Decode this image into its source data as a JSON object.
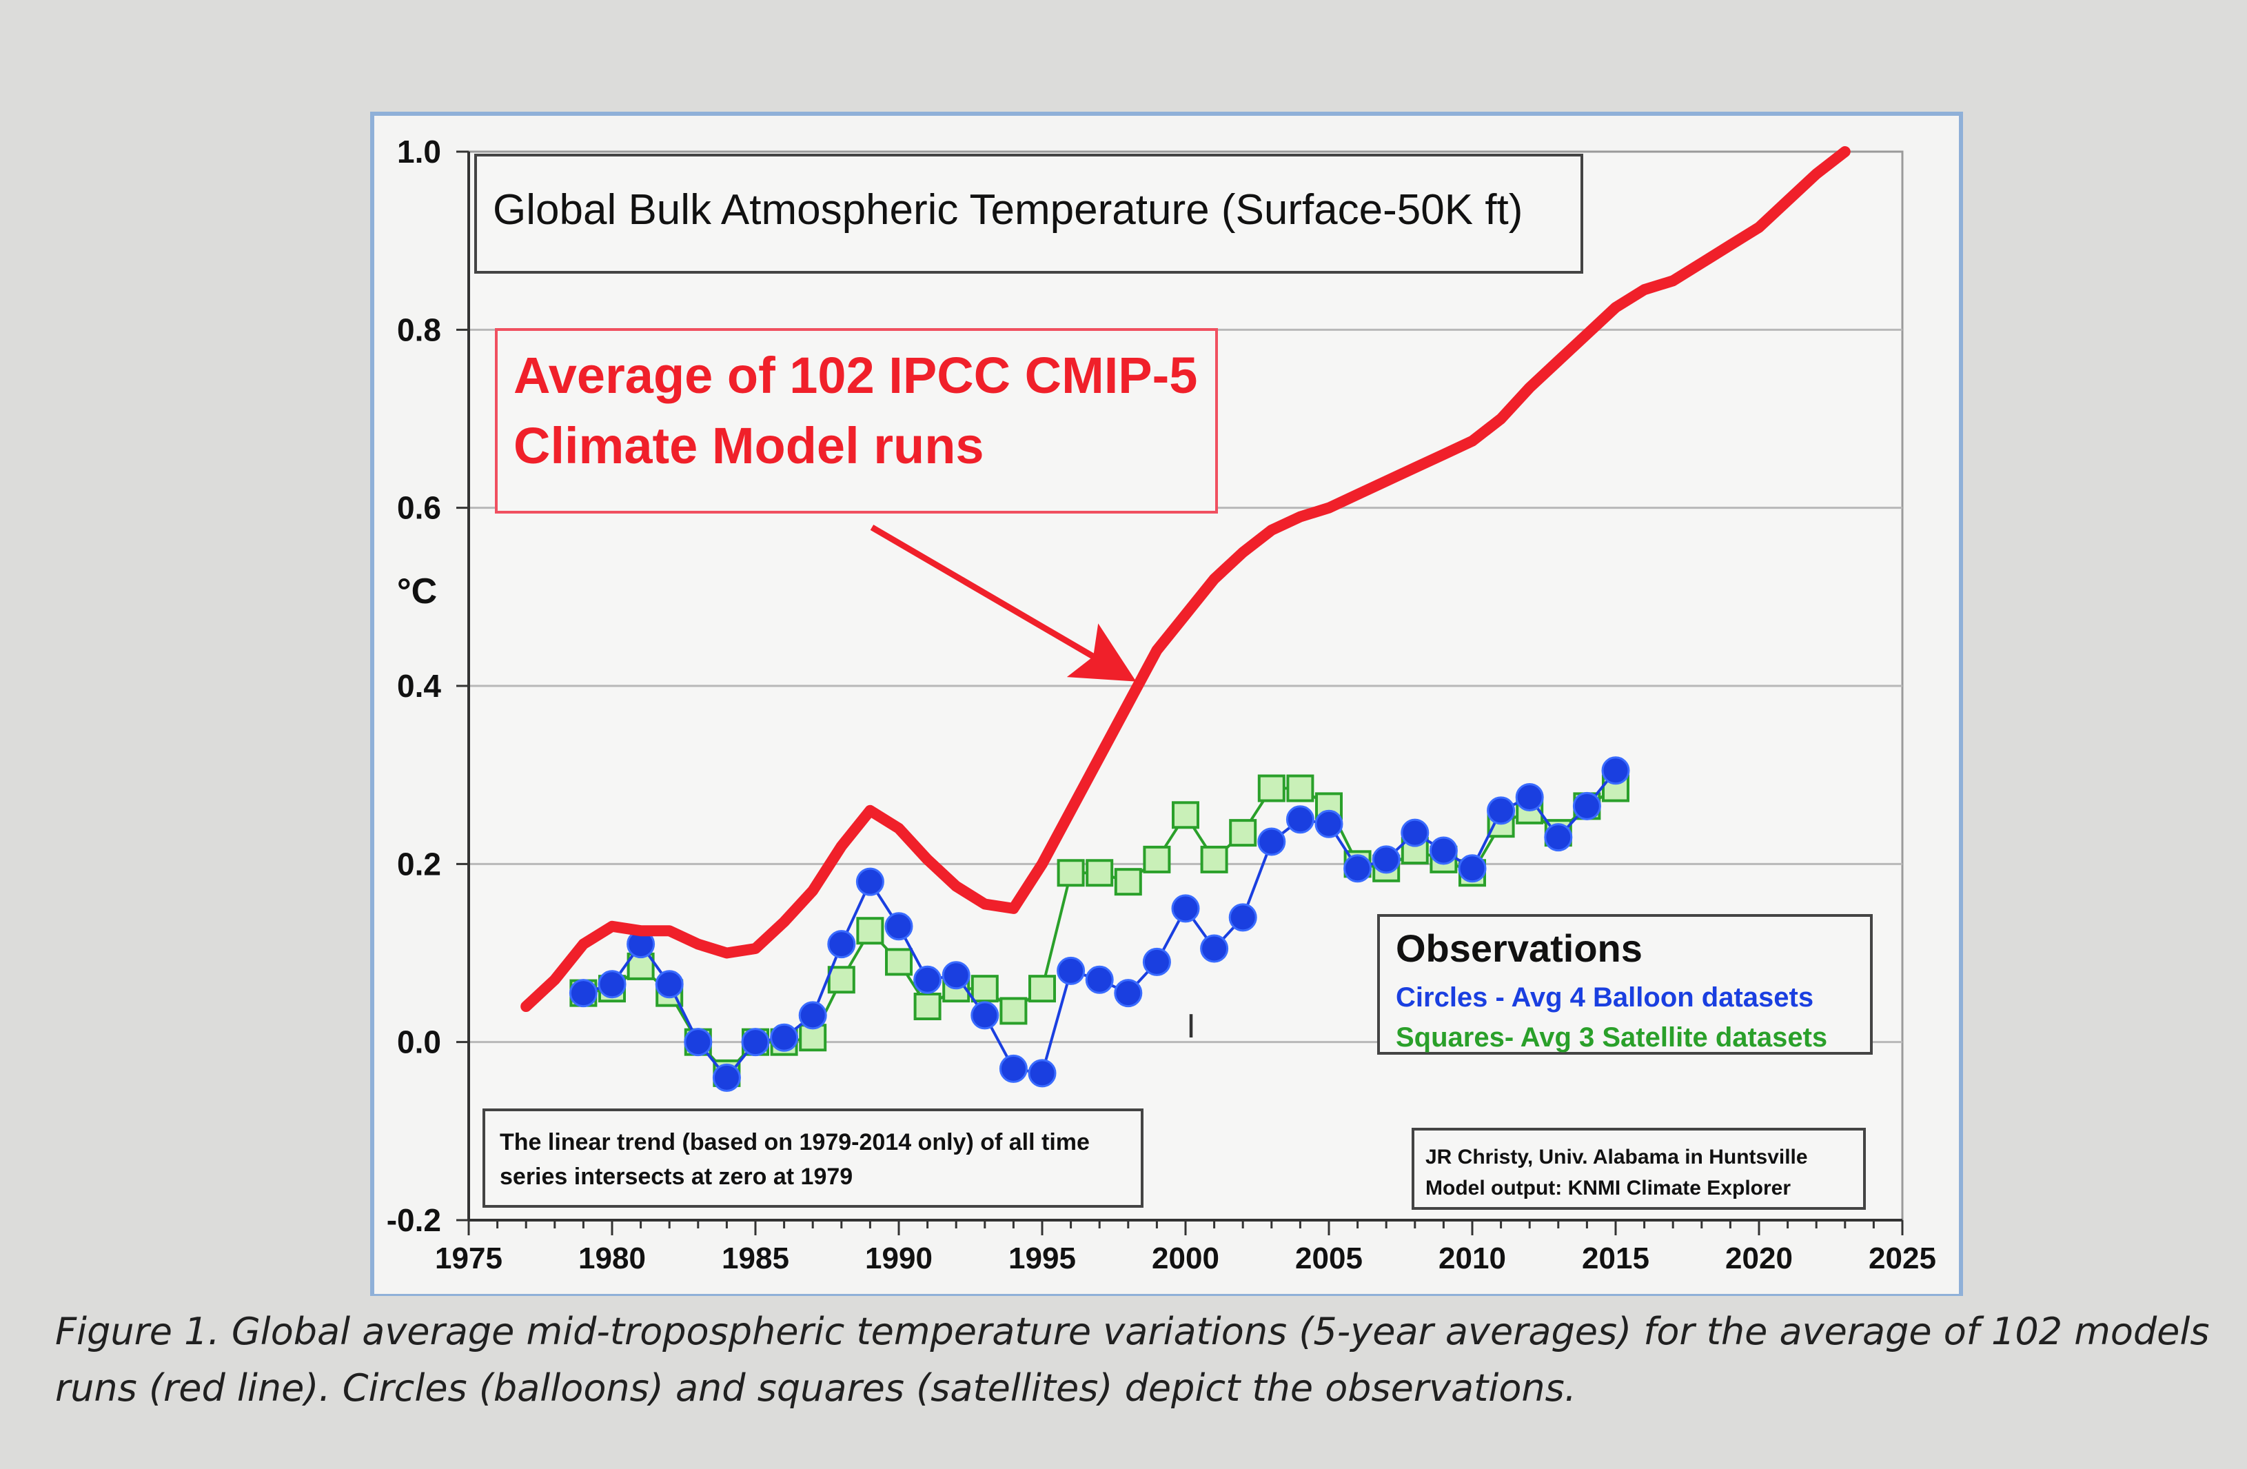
{
  "chart_data": {
    "type": "line",
    "title": "Global Bulk Atmospheric Temperature (Surface-50K ft)",
    "ylabel": "°C",
    "xlabel": "",
    "xlim": [
      1975,
      2025
    ],
    "ylim": [
      -0.2,
      1.0
    ],
    "x_ticks": [
      "1975",
      "1980",
      "1985",
      "1990",
      "1995",
      "2000",
      "2005",
      "2010",
      "2015",
      "2020",
      "2025"
    ],
    "y_ticks": [
      "-0.2",
      "0.0",
      "0.2",
      "0.4",
      "0.6",
      "0.8",
      "1.0"
    ],
    "grid": true,
    "series": [
      {
        "name": "Average of 102 IPCC CMIP-5 Climate Model runs",
        "color": "#f0202a",
        "marker": "none",
        "x": [
          1977,
          1978,
          1979,
          1980,
          1981,
          1982,
          1983,
          1984,
          1985,
          1986,
          1987,
          1988,
          1989,
          1990,
          1991,
          1992,
          1993,
          1994,
          1995,
          1996,
          1997,
          1998,
          1999,
          2000,
          2001,
          2002,
          2003,
          2004,
          2005,
          2006,
          2007,
          2008,
          2009,
          2010,
          2011,
          2012,
          2013,
          2014,
          2015,
          2016,
          2017,
          2018,
          2019,
          2020,
          2021,
          2022,
          2023
        ],
        "y": [
          0.04,
          0.07,
          0.11,
          0.13,
          0.125,
          0.125,
          0.11,
          0.1,
          0.105,
          0.135,
          0.17,
          0.22,
          0.26,
          0.24,
          0.205,
          0.175,
          0.155,
          0.15,
          0.2,
          0.26,
          0.32,
          0.38,
          0.44,
          0.48,
          0.52,
          0.55,
          0.575,
          0.59,
          0.6,
          0.615,
          0.63,
          0.645,
          0.66,
          0.675,
          0.7,
          0.735,
          0.765,
          0.795,
          0.825,
          0.845,
          0.855,
          0.875,
          0.895,
          0.915,
          0.945,
          0.975,
          1.0
        ]
      },
      {
        "name": "Circles - Avg 4 Balloon datasets",
        "color": "#1a3fe0",
        "marker": "circle",
        "x": [
          1979,
          1980,
          1981,
          1982,
          1983,
          1984,
          1985,
          1986,
          1987,
          1988,
          1989,
          1990,
          1991,
          1992,
          1993,
          1994,
          1995,
          1996,
          1997,
          1998,
          1999,
          2000,
          2001,
          2002,
          2003,
          2004,
          2005,
          2006,
          2007,
          2008,
          2009,
          2010,
          2011,
          2012,
          2013,
          2014,
          2015
        ],
        "y": [
          0.055,
          0.065,
          0.11,
          0.065,
          0.0,
          -0.04,
          0.0,
          0.005,
          0.03,
          0.11,
          0.18,
          0.13,
          0.07,
          0.075,
          0.03,
          -0.03,
          -0.035,
          0.08,
          0.07,
          0.055,
          0.09,
          0.15,
          0.105,
          0.14,
          0.225,
          0.25,
          0.245,
          0.195,
          0.205,
          0.235,
          0.215,
          0.195,
          0.26,
          0.275,
          0.23,
          0.265,
          0.305
        ]
      },
      {
        "name": "Squares- Avg 3 Satellite datasets",
        "color": "#2aa02a",
        "marker": "square",
        "x": [
          1979,
          1980,
          1981,
          1982,
          1983,
          1984,
          1985,
          1986,
          1987,
          1988,
          1989,
          1990,
          1991,
          1992,
          1993,
          1994,
          1995,
          1996,
          1997,
          1998,
          1999,
          2000,
          2001,
          2002,
          2003,
          2004,
          2005,
          2006,
          2007,
          2008,
          2009,
          2010,
          2011,
          2012,
          2013,
          2014,
          2015
        ],
        "y": [
          0.055,
          0.06,
          0.085,
          0.055,
          0.0,
          -0.035,
          0.0,
          0.0,
          0.005,
          0.07,
          0.125,
          0.09,
          0.04,
          0.06,
          0.06,
          0.035,
          0.06,
          0.19,
          0.19,
          0.18,
          0.205,
          0.255,
          0.205,
          0.235,
          0.285,
          0.285,
          0.265,
          0.2,
          0.195,
          0.215,
          0.205,
          0.19,
          0.245,
          0.26,
          0.235,
          0.265,
          0.285
        ]
      }
    ],
    "annotations": [
      {
        "name": "model-callout",
        "lines": [
          "Average of 102 IPCC CMIP-5",
          "Climate Model runs"
        ],
        "color": "#f0202a"
      },
      {
        "name": "trend-note",
        "lines": [
          "The linear trend (based on 1979-2014 only) of all time",
          "series intersects at zero at 1979"
        ]
      },
      {
        "name": "credit",
        "lines": [
          "JR Christy, Univ. Alabama in Huntsville",
          "Model output: KNMI Climate Explorer"
        ]
      }
    ],
    "legend": {
      "placement": "bottom-right",
      "title": "Observations",
      "entries": [
        "Circles - Avg 4 Balloon datasets",
        "Squares- Avg 3 Satellite datasets"
      ]
    }
  },
  "caption": {
    "line1": "Figure 1. Global average mid-tropospheric temperature variations (5-year averages) for the average of 102 models",
    "line2": "runs (red line).  Circles (balloons) and squares (satellites) depict the observations."
  },
  "colors": {
    "model": "#f0202a",
    "balloon": "#1a3fe0",
    "satellite": "#2aa02a",
    "frame": "#8fb0d8",
    "grid": "#b8b8b8"
  }
}
